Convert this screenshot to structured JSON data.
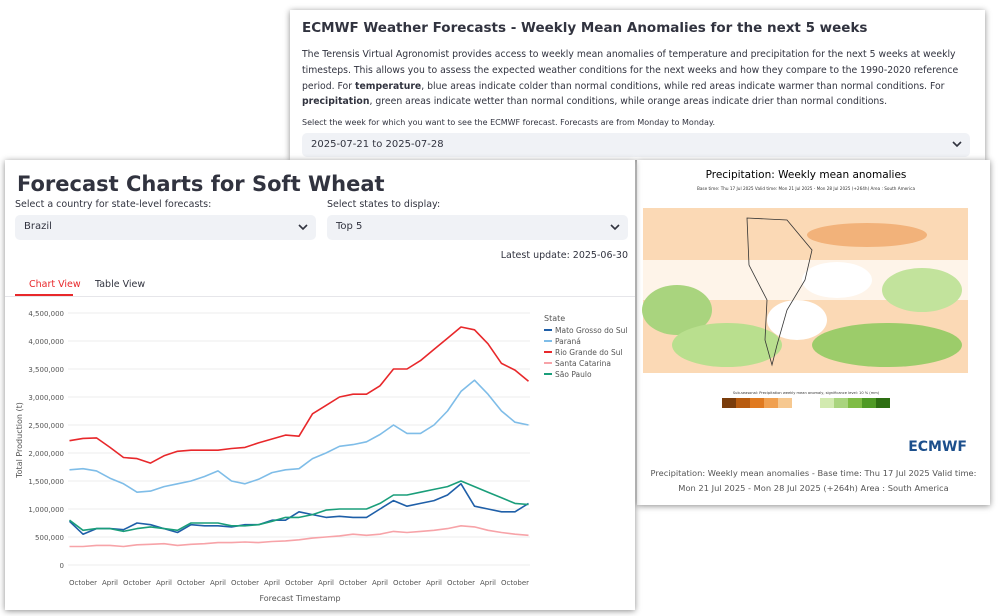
{
  "ecmwf_panel": {
    "title": "ECMWF Weather Forecasts - Weekly Mean Anomalies for the next 5 weeks",
    "description": {
      "part1": "The Terensis Virtual Agronomist provides access to weekly mean anomalies of temperature and precipitation for the next 5 weeks at weekly timesteps. This allows you to assess the expected weather conditions for the next weeks and how they compare to the 1990-2020 reference period. For ",
      "bold1": "temperature",
      "part2": ", blue areas indicate colder than normal conditions, while red areas indicate warmer than normal conditions. For ",
      "bold2": "precipitation",
      "part3": ", green areas indicate wetter than normal conditions, while orange areas indicate drier than normal conditions."
    },
    "select_label": "Select the week for which you want to see the ECMWF forecast. Forecasts are from Monday to Monday.",
    "select_value": "2025-07-21 to 2025-07-28",
    "map": {
      "title": "Precipitation: Weekly mean anomalies",
      "subtitle": "Base time: Thu 17 Jul 2025 Valid time: Mon 21 Jul 2025 - Mon 28 Jul 2025 (+264h) Area : South America",
      "colorbar_label": "Sub-seasonal: Precipitation weekly mean anomaly, significance level: 10 % (mm)",
      "logo": "ECMWF",
      "caption": "Precipitation: Weekly mean anomalies - Base time: Thu 17 Jul 2025 Valid time: Mon 21 Jul 2025 - Mon 28 Jul 2025 (+264h) Area : South America"
    }
  },
  "forecast_panel": {
    "title": "Forecast Charts for Soft Wheat",
    "country_label": "Select a country for state-level forecasts:",
    "country_value": "Brazil",
    "states_label": "Select states to display:",
    "states_value": "Top 5",
    "latest_update": "Latest update: 2025-06-30",
    "tabs": [
      "Chart View",
      "Table View"
    ]
  },
  "chart_data": {
    "type": "line",
    "x_label": "Forecast Timestamp",
    "y_label": "Total Production (t)",
    "legend_title": "State",
    "legend_position": "right",
    "categories": [
      null,
      "October",
      null,
      "April",
      null,
      "October",
      null,
      "April",
      null,
      "October",
      null,
      "April",
      null,
      "October",
      null,
      "April",
      null,
      "October",
      null,
      "April",
      null,
      "October",
      null,
      "April",
      null,
      "October",
      null,
      "April",
      null,
      "October",
      null,
      "April",
      null,
      "October",
      null
    ],
    "ylim": [
      0,
      4500000
    ],
    "yticks": [
      0,
      {
        "value": 500000,
        "label": "500,000"
      },
      {
        "value": 1000000,
        "label": "1,000,000"
      },
      {
        "value": 1500000,
        "label": "1,500,000"
      },
      {
        "value": 2000000,
        "label": "2,000,000"
      },
      {
        "value": 2500000,
        "label": "2,500,000"
      },
      {
        "value": 3000000,
        "label": "3,000,000"
      },
      {
        "value": 3500000,
        "label": "3,500,000"
      },
      {
        "value": 4000000,
        "label": "4,000,000"
      },
      {
        "value": 4500000,
        "label": "4,500,000"
      }
    ],
    "grid": true,
    "series": [
      {
        "name": "Mato Grosso do Sul",
        "color": "#1f5fa8",
        "values": [
          780000,
          550000,
          650000,
          650000,
          630000,
          750000,
          720000,
          650000,
          580000,
          720000,
          700000,
          700000,
          680000,
          720000,
          720000,
          800000,
          800000,
          950000,
          900000,
          850000,
          870000,
          850000,
          850000,
          1000000,
          1150000,
          1050000,
          1100000,
          1150000,
          1250000,
          1450000,
          1050000,
          1000000,
          950000,
          950000,
          1100000
        ]
      },
      {
        "name": "Paraná",
        "color": "#7fbde8",
        "values": [
          1700000,
          1720000,
          1680000,
          1550000,
          1450000,
          1300000,
          1320000,
          1400000,
          1450000,
          1500000,
          1580000,
          1680000,
          1500000,
          1450000,
          1530000,
          1650000,
          1700000,
          1720000,
          1900000,
          2000000,
          2120000,
          2150000,
          2200000,
          2330000,
          2500000,
          2350000,
          2350000,
          2500000,
          2750000,
          3100000,
          3300000,
          3050000,
          2750000,
          2550000,
          2500000
        ]
      },
      {
        "name": "Rio Grande do Sul",
        "color": "#e8282b",
        "values": [
          2220000,
          2260000,
          2270000,
          2100000,
          1920000,
          1900000,
          1820000,
          1950000,
          2030000,
          2050000,
          2050000,
          2050000,
          2080000,
          2100000,
          2180000,
          2250000,
          2320000,
          2300000,
          2700000,
          2850000,
          3000000,
          3050000,
          3050000,
          3200000,
          3500000,
          3500000,
          3650000,
          3850000,
          4050000,
          4250000,
          4200000,
          3950000,
          3600000,
          3480000,
          3280000
        ]
      },
      {
        "name": "Santa Catarina",
        "color": "#f7a3a8",
        "values": [
          330000,
          330000,
          350000,
          350000,
          330000,
          360000,
          370000,
          380000,
          350000,
          370000,
          380000,
          400000,
          400000,
          410000,
          400000,
          420000,
          430000,
          450000,
          480000,
          500000,
          520000,
          550000,
          530000,
          550000,
          600000,
          580000,
          600000,
          620000,
          650000,
          700000,
          680000,
          620000,
          580000,
          550000,
          530000
        ]
      },
      {
        "name": "São Paulo",
        "color": "#1a9e7a",
        "values": [
          800000,
          620000,
          650000,
          650000,
          600000,
          650000,
          680000,
          650000,
          620000,
          750000,
          750000,
          750000,
          700000,
          700000,
          720000,
          780000,
          850000,
          850000,
          900000,
          980000,
          1000000,
          1000000,
          1000000,
          1100000,
          1250000,
          1250000,
          1300000,
          1350000,
          1400000,
          1500000,
          1400000,
          1300000,
          1200000,
          1100000,
          1080000
        ]
      }
    ]
  }
}
